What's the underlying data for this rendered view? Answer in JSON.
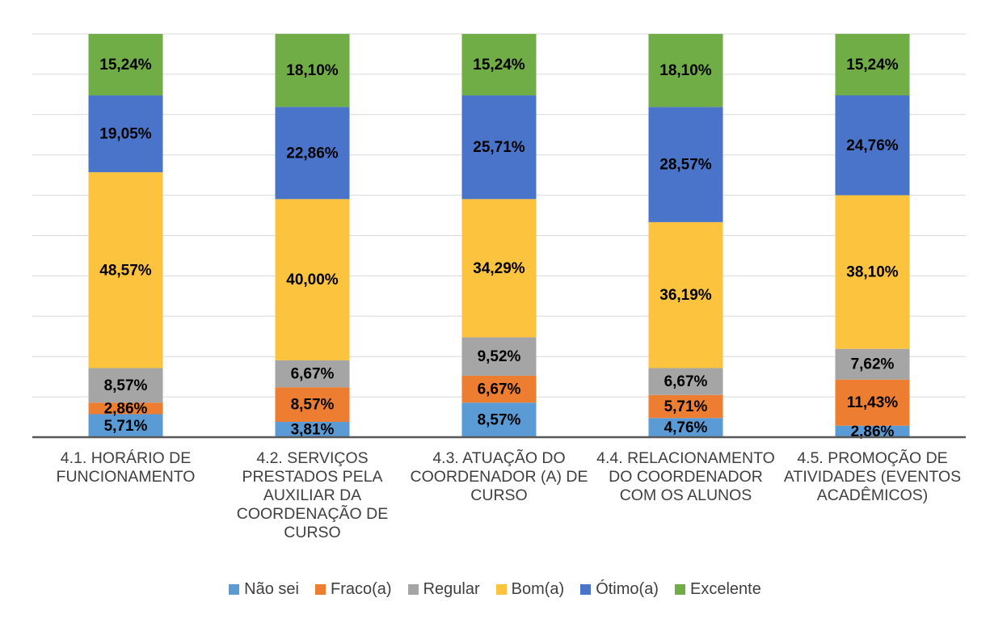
{
  "chart_data": {
    "type": "stacked_bar",
    "categories": [
      "4.1. HORÁRIO DE FUNCIONAMENTO",
      "4.2. SERVIÇOS PRESTADOS PELA AUXILIAR DA COORDENAÇÃO DE CURSO",
      "4.3. ATUAÇÃO DO COORDENADOR (A) DE CURSO",
      "4.4. RELACIONAMENTO DO COORDENADOR COM OS ALUNOS",
      "4.5. PROMOÇÃO DE ATIVIDADES (EVENTOS ACADÊMICOS)"
    ],
    "series": [
      {
        "name": "Não sei",
        "color": "#5b9bd5",
        "values": [
          5.71,
          3.81,
          8.57,
          4.76,
          2.86
        ],
        "value_labels": [
          "5,71%",
          "3,81%",
          "8,57%",
          "4,76%",
          "2,86%"
        ]
      },
      {
        "name": "Fraco(a)",
        "color": "#ed7d31",
        "values": [
          2.86,
          8.57,
          6.67,
          5.71,
          11.43
        ],
        "value_labels": [
          "2,86%",
          "8,57%",
          "6,67%",
          "5,71%",
          "11,43%"
        ]
      },
      {
        "name": "Regular",
        "color": "#a5a5a5",
        "values": [
          8.57,
          6.67,
          9.52,
          6.67,
          7.62
        ],
        "value_labels": [
          "8,57%",
          "6,67%",
          "9,52%",
          "6,67%",
          "7,62%"
        ]
      },
      {
        "name": "Bom(a)",
        "color": "#fcc33f",
        "values": [
          48.57,
          40.0,
          34.29,
          36.19,
          38.1
        ],
        "value_labels": [
          "48,57%",
          "40,00%",
          "34,29%",
          "36,19%",
          "38,10%"
        ]
      },
      {
        "name": "Ótimo(a)",
        "color": "#4a74c9",
        "values": [
          19.05,
          22.86,
          25.71,
          28.57,
          24.76
        ],
        "value_labels": [
          "19,05%",
          "22,86%",
          "25,71%",
          "28,57%",
          "24,76%"
        ]
      },
      {
        "name": "Excelente",
        "color": "#70ad47",
        "values": [
          15.24,
          18.1,
          15.24,
          18.1,
          15.24
        ],
        "value_labels": [
          "15,24%",
          "18,10%",
          "15,24%",
          "18,10%",
          "15,24%"
        ]
      }
    ],
    "ylim": [
      0,
      100
    ],
    "yticks": [
      0,
      10,
      20,
      30,
      40,
      50,
      60,
      70,
      80,
      90,
      100
    ],
    "grid": true
  }
}
